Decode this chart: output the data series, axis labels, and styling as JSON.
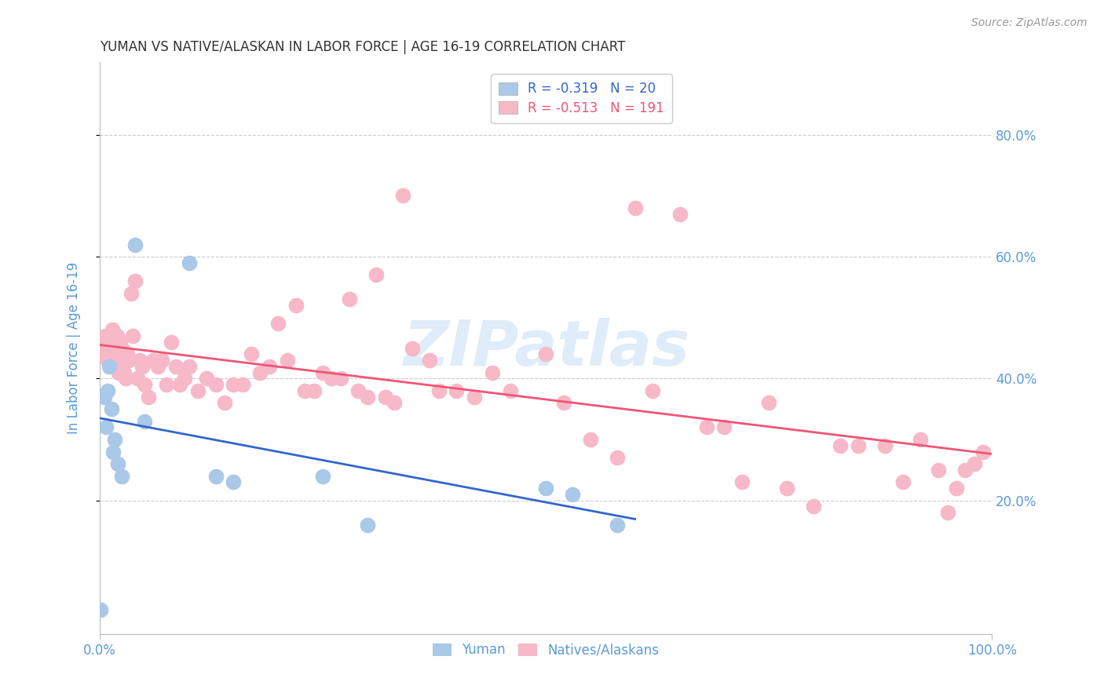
{
  "title": "YUMAN VS NATIVE/ALASKAN IN LABOR FORCE | AGE 16-19 CORRELATION CHART",
  "source": "Source: ZipAtlas.com",
  "ylabel": "In Labor Force | Age 16-19",
  "y_ticks_right": [
    "80.0%",
    "60.0%",
    "40.0%",
    "20.0%"
  ],
  "y_tick_values": [
    0.8,
    0.6,
    0.4,
    0.2
  ],
  "xlim": [
    0.0,
    1.0
  ],
  "ylim": [
    -0.02,
    0.92
  ],
  "yuman_color": "#aac8e8",
  "native_color": "#f7b8c8",
  "yuman_line_color": "#3366cc",
  "native_line_color": "#ee5577",
  "title_color": "#333333",
  "axis_color": "#5b9bd5",
  "grid_color": "#cccccc",
  "watermark": "ZIPatlas",
  "yuman_data_x": [
    0.001,
    0.005,
    0.007,
    0.009,
    0.011,
    0.013,
    0.015,
    0.017,
    0.02,
    0.025,
    0.04,
    0.05,
    0.1,
    0.13,
    0.15,
    0.25,
    0.3,
    0.5,
    0.53,
    0.58
  ],
  "yuman_data_y": [
    0.02,
    0.37,
    0.32,
    0.38,
    0.42,
    0.35,
    0.28,
    0.3,
    0.26,
    0.24,
    0.62,
    0.33,
    0.59,
    0.24,
    0.23,
    0.24,
    0.16,
    0.22,
    0.21,
    0.16
  ],
  "native_data_x": [
    0.001,
    0.002,
    0.003,
    0.004,
    0.005,
    0.006,
    0.007,
    0.008,
    0.009,
    0.01,
    0.011,
    0.012,
    0.013,
    0.014,
    0.015,
    0.016,
    0.017,
    0.018,
    0.019,
    0.02,
    0.021,
    0.022,
    0.023,
    0.025,
    0.027,
    0.029,
    0.031,
    0.033,
    0.035,
    0.037,
    0.04,
    0.042,
    0.045,
    0.048,
    0.05,
    0.055,
    0.06,
    0.065,
    0.07,
    0.075,
    0.08,
    0.085,
    0.09,
    0.095,
    0.1,
    0.11,
    0.12,
    0.13,
    0.14,
    0.15,
    0.16,
    0.17,
    0.18,
    0.19,
    0.2,
    0.21,
    0.22,
    0.23,
    0.24,
    0.25,
    0.26,
    0.27,
    0.28,
    0.29,
    0.3,
    0.31,
    0.32,
    0.33,
    0.34,
    0.35,
    0.37,
    0.38,
    0.4,
    0.42,
    0.44,
    0.46,
    0.5,
    0.52,
    0.55,
    0.58,
    0.6,
    0.62,
    0.65,
    0.68,
    0.7,
    0.72,
    0.75,
    0.77,
    0.8,
    0.83,
    0.85,
    0.88,
    0.9,
    0.92,
    0.94,
    0.95,
    0.96,
    0.97,
    0.98,
    0.99
  ],
  "native_data_y": [
    0.46,
    0.44,
    0.46,
    0.44,
    0.46,
    0.47,
    0.44,
    0.45,
    0.43,
    0.44,
    0.47,
    0.43,
    0.46,
    0.48,
    0.46,
    0.46,
    0.44,
    0.43,
    0.47,
    0.44,
    0.41,
    0.43,
    0.46,
    0.45,
    0.41,
    0.4,
    0.44,
    0.43,
    0.54,
    0.47,
    0.56,
    0.4,
    0.43,
    0.42,
    0.39,
    0.37,
    0.43,
    0.42,
    0.43,
    0.39,
    0.46,
    0.42,
    0.39,
    0.4,
    0.42,
    0.38,
    0.4,
    0.39,
    0.36,
    0.39,
    0.39,
    0.44,
    0.41,
    0.42,
    0.49,
    0.43,
    0.52,
    0.38,
    0.38,
    0.41,
    0.4,
    0.4,
    0.53,
    0.38,
    0.37,
    0.57,
    0.37,
    0.36,
    0.7,
    0.45,
    0.43,
    0.38,
    0.38,
    0.37,
    0.41,
    0.38,
    0.44,
    0.36,
    0.3,
    0.27,
    0.68,
    0.38,
    0.67,
    0.32,
    0.32,
    0.23,
    0.36,
    0.22,
    0.19,
    0.29,
    0.29,
    0.29,
    0.23,
    0.3,
    0.25,
    0.18,
    0.22,
    0.25,
    0.26,
    0.28
  ]
}
